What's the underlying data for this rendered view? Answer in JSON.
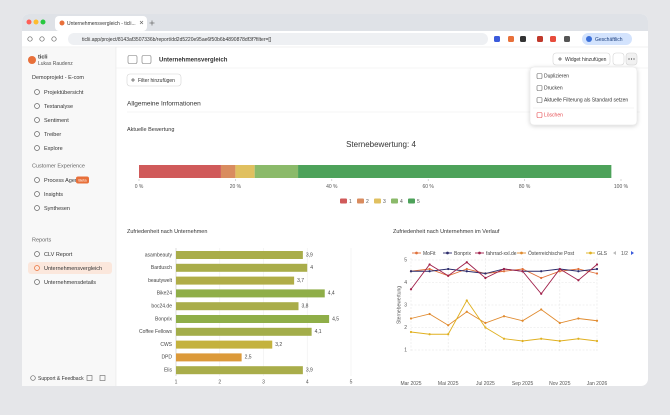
{
  "browser": {
    "tab_title": "Unternehmensvergleich - ticli...",
    "url": "ticlii.app/project/8143af3507336b/report/dd2d5220e95ae6f50b6b4890878df3f?filter=[]",
    "profile": "Geschäftlich"
  },
  "sidebar": {
    "workspace": "ticli",
    "user": "Lukas Raudenz",
    "project": "Demoprojekt - E-com",
    "nav": [
      "Projektübersicht",
      "Textanalyse",
      "Sentiment",
      "Treiber",
      "Explore"
    ],
    "sections": [
      {
        "title": "Customer Experience",
        "items": [
          "Process Agent",
          "Insights",
          "Synthesen"
        ]
      },
      {
        "title": "Reports",
        "items": [
          "CLV Report",
          "Unternehmensvergleich",
          "Unternehmensdetails"
        ]
      }
    ],
    "badge": "Beta",
    "footer": "Support & Feedback"
  },
  "header": {
    "title": "Unternehmensvergleich",
    "filter_button": "Filter hinzufügen",
    "widget_button": "Widget hinzufügen"
  },
  "menu": [
    "Duplizieren",
    "Drucken",
    "Aktuelle Filterung als Standard setzen",
    "Löschen"
  ],
  "section_title": "Allgemeine Informationen",
  "charts": [
    {
      "type": "stacked-bar",
      "title": "Aktuelle Bewertung",
      "subtitle": "Sternebewertung: 4",
      "series": [
        {
          "name": "1",
          "color": "#d05a5a",
          "values": [
            17
          ]
        },
        {
          "name": "2",
          "color": "#d98c5f",
          "values": [
            3
          ]
        },
        {
          "name": "3",
          "color": "#e0c060",
          "values": [
            4
          ]
        },
        {
          "name": "4",
          "color": "#8bba6a",
          "values": [
            9
          ]
        },
        {
          "name": "5",
          "color": "#4da25a",
          "values": [
            65
          ]
        }
      ],
      "xlim": [
        0,
        100
      ],
      "xticks": [
        {
          "value": 0,
          "label": "0 %"
        },
        {
          "value": 20,
          "label": "20 %"
        },
        {
          "value": 40,
          "label": "40 %"
        },
        {
          "value": 60,
          "label": "60 %"
        },
        {
          "value": 80,
          "label": "80 %"
        },
        {
          "value": 100,
          "label": "100 %"
        }
      ]
    },
    {
      "type": "hbar",
      "title": "Zufriedenheit nach Unternehmen",
      "categories": [
        "asambeauty",
        "Bardusch",
        "beautywelt",
        "Bike24",
        "boc24.de",
        "Bonprix",
        "Coffee Fellows",
        "CWS",
        "DPD",
        "Elis"
      ],
      "values": [
        3.9,
        4,
        3.7,
        4.4,
        3.8,
        4.5,
        4.1,
        3.2,
        2.5,
        3.9
      ],
      "value_labels": [
        "3,9",
        "4",
        "3,7",
        "4,4",
        "3,8",
        "4,5",
        "4,1",
        "3,2",
        "2,5",
        "3,9"
      ],
      "colors": [
        "#a9ad4a",
        "#a9ad4a",
        "#b0ad48",
        "#8fae48",
        "#a9ad4a",
        "#8fae48",
        "#a3ad4a",
        "#c4b23e",
        "#dc9a3a",
        "#a9ad4a"
      ],
      "xlim": [
        1,
        5
      ],
      "xticks": [
        1,
        2,
        3,
        4,
        5
      ]
    },
    {
      "type": "line",
      "title": "Zufriedenheit nach Unternehmen im Verlauf",
      "y_label": "Sternebewertung",
      "x": [
        0,
        1,
        2,
        3,
        4,
        5,
        6,
        7,
        8,
        9,
        10
      ],
      "series": [
        {
          "name": "MoFit",
          "color": "#e0703a",
          "values": [
            4.5,
            4.6,
            4.3,
            4.6,
            4.4,
            4.5,
            4.6,
            4.2,
            4.5,
            4.6,
            4.4
          ]
        },
        {
          "name": "Bonprix",
          "color": "#2c2c6c",
          "values": [
            4.5,
            4.5,
            4.6,
            4.5,
            4.4,
            4.6,
            4.5,
            4.5,
            4.6,
            4.5,
            4.6
          ]
        },
        {
          "name": "fahrrad-xxl.de",
          "color": "#a0204a",
          "values": [
            3.7,
            4.8,
            4.3,
            4.9,
            4.2,
            4.6,
            4.5,
            3.5,
            4.6,
            4.1,
            4.8
          ]
        },
        {
          "name": "Österreichische Post",
          "color": "#e08a2e",
          "values": [
            2.4,
            2.6,
            2.1,
            2.7,
            2.2,
            2.5,
            2.3,
            2.8,
            2.2,
            2.4,
            2.3
          ]
        },
        {
          "name": "GLS",
          "color": "#e0b020",
          "values": [
            1.8,
            1.7,
            1.7,
            3.2,
            2.0,
            1.5,
            1.4,
            1.5,
            1.4,
            1.5,
            1.4
          ]
        }
      ],
      "legend_page": "1/2",
      "xlim": [
        0,
        10
      ],
      "xticks": [
        {
          "value": 0,
          "label": "Mar 2025"
        },
        {
          "value": 2,
          "label": "Mai 2025"
        },
        {
          "value": 4,
          "label": "Jul 2025"
        },
        {
          "value": 6,
          "label": "Sep 2025"
        },
        {
          "value": 8,
          "label": "Nov 2025"
        },
        {
          "value": 10,
          "label": "Jan 2026"
        }
      ],
      "ylim": [
        1,
        5
      ],
      "yticks": [
        1,
        2,
        3,
        4,
        5
      ]
    }
  ]
}
